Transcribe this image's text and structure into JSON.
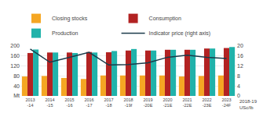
{
  "chart_data": {
    "type": "bar",
    "categories": [
      "2013\n-14",
      "2014\n-15",
      "2015\n-16",
      "2016\n-17",
      "2017\n-18",
      "2018\n-19f",
      "2019\n-20E",
      "2020\n-21E",
      "2021\n-22E",
      "2022\n-23E",
      "2023\n-24F"
    ],
    "series": [
      {
        "name": "Closing stocks",
        "color": "#F5A623",
        "values": [
          78,
          80,
          72,
          68,
          82,
          82,
          82,
          82,
          78,
          80,
          82
        ]
      },
      {
        "name": "Consumption",
        "color": "#B22222",
        "values": [
          172,
          174,
          174,
          176,
          175,
          182,
          182,
          185,
          185,
          190,
          192
        ]
      },
      {
        "name": "Production",
        "color": "#20B2AA",
        "values": [
          186,
          174,
          172,
          174,
          180,
          188,
          182,
          185,
          185,
          190,
          196
        ]
      },
      {
        "name": "Indicator price (right axis)",
        "type": "line",
        "axis": "y2",
        "color": "#1a3a4a",
        "values": [
          18.8,
          13.5,
          15.5,
          17.5,
          12.4,
          12.6,
          13.3,
          15.5,
          16.3,
          15.5,
          15.0
        ]
      }
    ],
    "ylim": [
      0,
      200
    ],
    "yticks": [
      {
        "value": 0,
        "label": "Mt"
      },
      40,
      80,
      120,
      160,
      200
    ],
    "y2lim": [
      0,
      20
    ],
    "y2ticks": [
      0,
      4,
      8,
      12,
      16,
      20
    ],
    "y2label": "2018-19\nUSc/lb",
    "grid": true,
    "legend": "top"
  }
}
